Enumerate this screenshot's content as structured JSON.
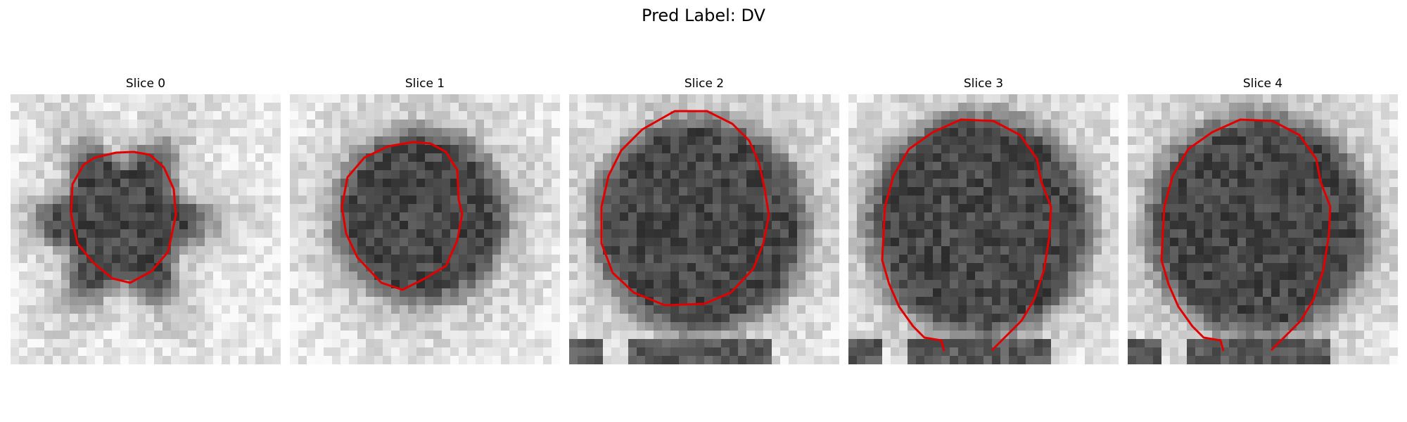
{
  "figure": {
    "suptitle": "Pred Label: DV"
  },
  "panels": [
    {
      "title": "Slice 0",
      "seed": 11,
      "outline_color": "#e30000"
    },
    {
      "title": "Slice 1",
      "seed": 23,
      "outline_color": "#e30000"
    },
    {
      "title": "Slice 2",
      "seed": 37,
      "outline_color": "#e30000"
    },
    {
      "title": "Slice 3",
      "seed": 41,
      "outline_color": "#e30000"
    },
    {
      "title": "Slice 4",
      "seed": 53,
      "outline_color": "#e30000"
    }
  ]
}
